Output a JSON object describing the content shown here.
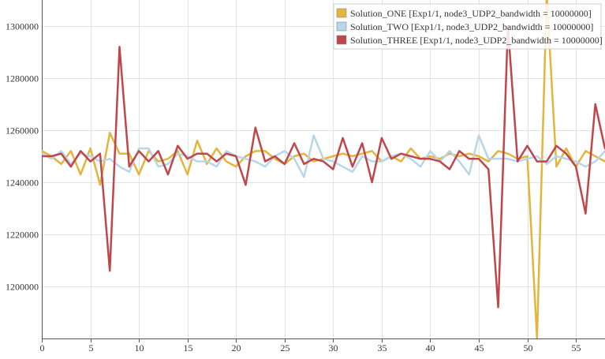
{
  "chart_data": {
    "type": "line",
    "title": "",
    "xlabel": "",
    "ylabel": "",
    "xlim": [
      0,
      58
    ],
    "ylim": [
      1180000,
      1310000
    ],
    "grid": true,
    "legend_position": "top-right",
    "x_ticks": [
      0,
      5,
      10,
      15,
      20,
      25,
      30,
      35,
      40,
      45,
      50,
      55
    ],
    "x_tick_labels": [
      "0",
      "5",
      "10",
      "15",
      "20",
      "25",
      "30",
      "35",
      "40",
      "45",
      "50",
      "55"
    ],
    "y_ticks": [
      1200000,
      1220000,
      1240000,
      1260000,
      1280000,
      1300000
    ],
    "y_tick_labels": [
      "1200000",
      "1220000",
      "1240000",
      "1260000",
      "1280000",
      "1300000"
    ],
    "series": [
      {
        "name": "Solution_ONE [Exp1/1, node3_UDP2_bandwidth = 10000000]",
        "color": "#e3b53c",
        "values": [
          1252000,
          1250000,
          1247000,
          1252000,
          1243000,
          1253000,
          1239000,
          1259000,
          1251000,
          1251000,
          1243000,
          1252000,
          1248000,
          1249000,
          1252000,
          1243000,
          1256000,
          1247000,
          1253000,
          1248000,
          1246000,
          1250000,
          1252000,
          1252000,
          1249000,
          1247000,
          1250000,
          1251000,
          1248000,
          1249000,
          1250000,
          1251000,
          1250000,
          1251000,
          1252000,
          1248000,
          1250000,
          1248000,
          1253000,
          1249000,
          1250000,
          1249000,
          1251000,
          1250000,
          1251000,
          1250000,
          1248000,
          1252000,
          1251000,
          1249000,
          1250000,
          1180000,
          1312000,
          1246000,
          1253000,
          1246000,
          1252000,
          1250000,
          1248000
        ]
      },
      {
        "name": "Solution_TWO [Exp1/1, node3_UDP2_bandwidth = 10000000]",
        "color": "#b7d6ea",
        "values": [
          1251000,
          1249000,
          1252000,
          1247000,
          1251000,
          1250000,
          1248000,
          1249000,
          1246000,
          1244000,
          1253000,
          1253000,
          1246000,
          1247000,
          1251000,
          1250000,
          1248000,
          1248000,
          1246000,
          1252000,
          1250000,
          1249000,
          1248000,
          1246000,
          1250000,
          1252000,
          1249000,
          1242000,
          1258000,
          1249000,
          1248000,
          1246000,
          1244000,
          1250000,
          1248000,
          1248000,
          1250000,
          1251000,
          1249000,
          1246000,
          1252000,
          1248000,
          1252000,
          1248000,
          1243000,
          1258000,
          1249000,
          1249000,
          1249000,
          1248000,
          1249000,
          1250000,
          1247000,
          1250000,
          1249000,
          1248000,
          1246000,
          1248000,
          1252000
        ]
      },
      {
        "name": "Solution_THREE [Exp1/1, node3_UDP2_bandwidth = 10000000]",
        "color": "#c0464a",
        "values": [
          1250000,
          1250000,
          1251000,
          1246000,
          1252000,
          1248000,
          1251000,
          1206000,
          1292000,
          1246000,
          1252000,
          1248000,
          1252000,
          1243000,
          1254000,
          1249000,
          1251000,
          1251000,
          1248000,
          1251000,
          1250000,
          1239000,
          1261000,
          1248000,
          1250000,
          1247000,
          1255000,
          1247000,
          1249000,
          1248000,
          1245000,
          1257000,
          1246000,
          1255000,
          1240000,
          1257000,
          1249000,
          1251000,
          1250000,
          1249000,
          1249000,
          1248000,
          1245000,
          1252000,
          1249000,
          1249000,
          1245000,
          1192000,
          1300000,
          1248000,
          1254000,
          1248000,
          1248000,
          1254000,
          1251000,
          1246000,
          1228000,
          1270000,
          1253000
        ]
      }
    ]
  }
}
